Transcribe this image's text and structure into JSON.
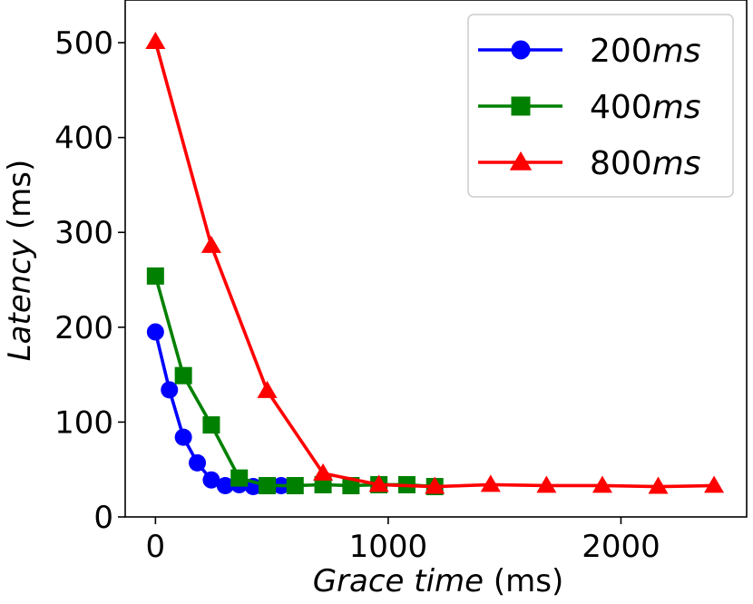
{
  "chart_data": {
    "type": "line",
    "xlabel": {
      "italic": "Grace time",
      "unit": " (ms)"
    },
    "ylabel": {
      "italic": "Latency",
      "unit": " (ms)"
    },
    "xlim": [
      -130,
      2540
    ],
    "ylim": [
      0,
      545
    ],
    "xticks": [
      0,
      1000,
      2000
    ],
    "xtick_labels": [
      "0",
      "1000",
      "2000"
    ],
    "yticks": [
      0,
      100,
      200,
      300,
      400,
      500
    ],
    "ytick_labels": [
      "0",
      "100",
      "200",
      "300",
      "400",
      "500"
    ],
    "grid": false,
    "legend_position": "top-right",
    "series": [
      {
        "name": {
          "prefix": "200",
          "italic": "ms"
        },
        "color": "#0000ff",
        "marker": "circle",
        "x": [
          0,
          60,
          120,
          180,
          240,
          300,
          360,
          420,
          480,
          540
        ],
        "y": [
          195,
          134,
          84,
          57,
          39,
          33,
          34,
          32,
          33,
          33
        ]
      },
      {
        "name": {
          "prefix": "400",
          "italic": "ms"
        },
        "color": "#008000",
        "marker": "square",
        "x": [
          0,
          120,
          240,
          360,
          480,
          600,
          720,
          840,
          960,
          1080,
          1200
        ],
        "y": [
          254,
          149,
          97,
          41,
          33,
          33,
          34,
          33,
          34,
          34,
          32
        ]
      },
      {
        "name": {
          "prefix": "800",
          "italic": "ms"
        },
        "color": "#ff0000",
        "marker": "triangle",
        "x": [
          0,
          240,
          480,
          720,
          960,
          1200,
          1440,
          1680,
          1920,
          2160,
          2400
        ],
        "y": [
          501,
          286,
          133,
          46,
          34,
          32,
          34,
          33,
          33,
          32,
          33
        ]
      }
    ]
  }
}
